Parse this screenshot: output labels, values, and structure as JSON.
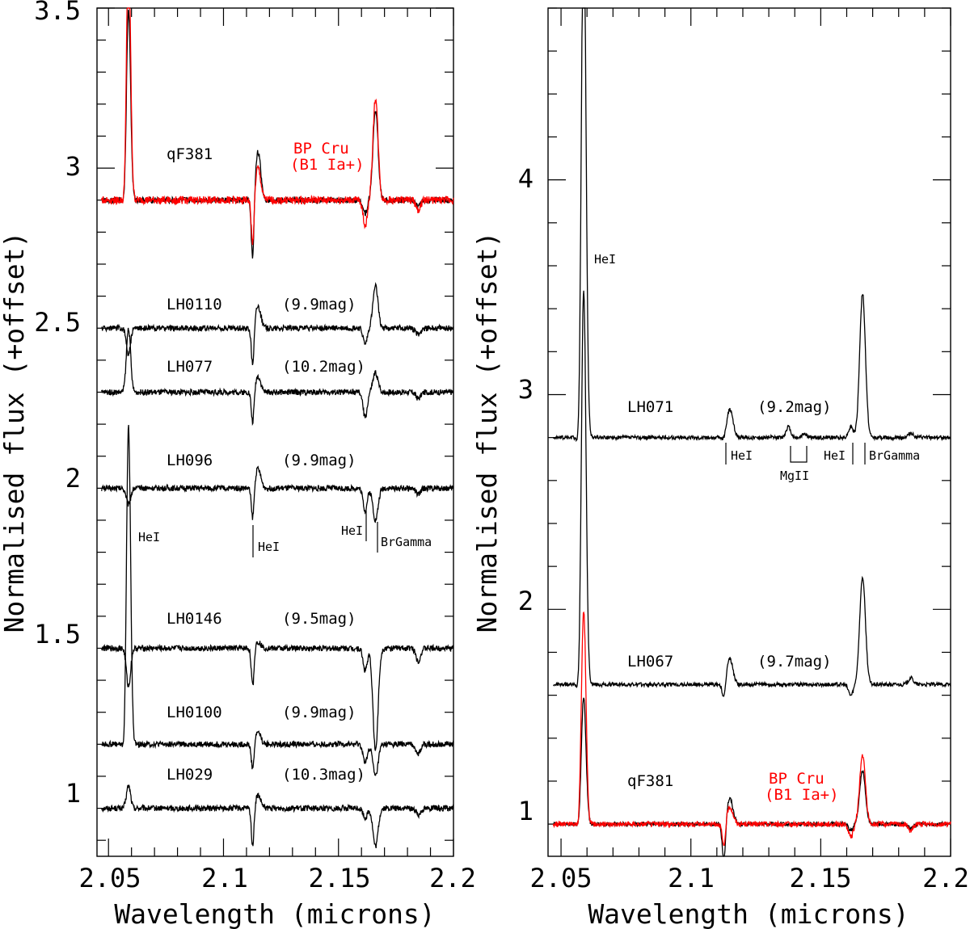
{
  "chart_data": [
    {
      "type": "line",
      "panel": "left",
      "xlabel": "Wavelength (microns)",
      "ylabel": "Normalised flux (+offset)",
      "xlim": [
        2.045,
        2.2
      ],
      "ylim": [
        0.85,
        3.5
      ],
      "xticks": [
        2.05,
        2.1,
        2.15,
        2.2
      ],
      "xtick_labels": [
        "2.05",
        "2.1",
        "2.15",
        "2.2"
      ],
      "yticks": [
        1,
        1.5,
        2,
        2.5,
        3,
        3.5
      ],
      "ytick_labels": [
        "1",
        "1.5",
        "2",
        "2.5",
        "3",
        "3.5"
      ],
      "series": [
        {
          "name": "LH029",
          "mag": "(10.3mag)",
          "baseline": 1.0,
          "color": "#000000",
          "lines": {
            "HeI_206": 0.07,
            "HeI_211a": -0.12,
            "HeI_211e": 0.04,
            "HeI_216": -0.03,
            "BrG": -0.12,
            "HeI_2185": -0.02
          }
        },
        {
          "name": "LH0100",
          "mag": "(9.9mag)",
          "baseline": 1.2,
          "color": "#000000",
          "lines": {
            "HeI_206": 1.0,
            "HeI_211a": -0.08,
            "HeI_211e": 0.04,
            "HeI_216": -0.06,
            "BrG": -0.1,
            "HeI_2185": -0.03
          }
        },
        {
          "name": "LH0146",
          "mag": "(9.5mag)",
          "baseline": 1.5,
          "color": "#000000",
          "lines": {
            "HeI_206": -0.12,
            "HeI_211a": -0.12,
            "HeI_211e": 0.02,
            "HeI_216": -0.07,
            "BrG": -0.32,
            "HeI_2185": -0.04
          }
        },
        {
          "name": "LH096",
          "mag": "(9.9mag)",
          "baseline": 2.0,
          "color": "#000000",
          "lines": {
            "HeI_206": -0.05,
            "HeI_211a": -0.1,
            "HeI_211e": 0.06,
            "HeI_216": -0.07,
            "BrG": -0.1,
            "HeI_2185": -0.02
          }
        },
        {
          "name": "LH077",
          "mag": "(10.2mag)",
          "baseline": 2.3,
          "color": "#000000",
          "lines": {
            "HeI_206": 0.2,
            "HeI_211a": -0.1,
            "HeI_211e": 0.05,
            "HeI_216": -0.08,
            "BrG": 0.06,
            "HeI_2185": -0.02
          }
        },
        {
          "name": "LH0110",
          "mag": "(9.9mag)",
          "baseline": 2.5,
          "color": "#000000",
          "lines": {
            "HeI_206": -0.08,
            "HeI_211a": -0.12,
            "HeI_211e": 0.07,
            "HeI_216": -0.05,
            "BrG": 0.13,
            "HeI_2185": -0.02
          }
        },
        {
          "name": "qF381",
          "baseline": 2.9,
          "color": "#000000",
          "lines": {
            "HeI_206": 0.6,
            "HeI_211a": -0.2,
            "HeI_211e": 0.15,
            "HeI_216": -0.04,
            "BrG": 0.28,
            "HeI_2185": -0.02
          }
        },
        {
          "name": "BP Cru",
          "spectral_type": "(B1 Ia+)",
          "baseline": 2.9,
          "color": "#ff0000",
          "lines": {
            "HeI_206": 0.8,
            "HeI_211a": -0.15,
            "HeI_211e": 0.1,
            "HeI_216": -0.08,
            "BrG": 0.32,
            "HeI_2185": -0.03
          }
        }
      ],
      "line_ids": [
        {
          "label": "HeI",
          "x": 2.0587
        },
        {
          "label": "HeI",
          "x": 2.1127
        },
        {
          "label": "HeI",
          "x": 2.1616
        },
        {
          "label": "BrGamma",
          "x": 2.1661
        }
      ]
    },
    {
      "type": "line",
      "panel": "right",
      "xlabel": "Wavelength (microns)",
      "ylabel": "Normalised flux (+offset)",
      "xlim": [
        2.045,
        2.2
      ],
      "ylim": [
        0.85,
        4.8
      ],
      "xticks": [
        2.05,
        2.1,
        2.15,
        2.2
      ],
      "xtick_labels": [
        "2.05",
        "2.1",
        "2.15",
        "2.2"
      ],
      "yticks": [
        1,
        2,
        3,
        4
      ],
      "ytick_labels": [
        "1",
        "2",
        "3",
        "4"
      ],
      "series": [
        {
          "name": "qF381",
          "baseline": 1.0,
          "color": "#000000",
          "lines": {
            "HeI_206": 0.6,
            "HeI_211a": -0.2,
            "HeI_211e": 0.12,
            "HeI_216": -0.03,
            "BrG": 0.25,
            "HeI_2185": -0.02
          }
        },
        {
          "name": "BP Cru",
          "spectral_type": "(B1 Ia+)",
          "baseline": 1.0,
          "color": "#ff0000",
          "lines": {
            "HeI_206": 1.0,
            "HeI_211a": -0.12,
            "HeI_211e": 0.08,
            "HeI_216": -0.06,
            "BrG": 0.32,
            "HeI_2185": -0.03
          }
        },
        {
          "name": "LH067",
          "mag": "(9.7mag)",
          "baseline": 1.65,
          "color": "#000000",
          "lines": {
            "HeI_206": 1.85,
            "HeI_211a": -0.08,
            "HeI_211e": 0.12,
            "HeI_216": -0.05,
            "BrG": 0.5,
            "HeI_2185": 0.03
          }
        },
        {
          "name": "LH071",
          "mag": "(9.2mag)",
          "baseline": 2.8,
          "color": "#000000",
          "lines": {
            "HeI_206": 2.5,
            "HeI_211a": -0.02,
            "HeI_211e": 0.13,
            "HeI_216": 0.05,
            "BrG": 0.67,
            "MgII_2138": 0.05,
            "MgII_2144": 0.02,
            "HeI_2185": 0.02
          }
        }
      ],
      "line_ids": [
        {
          "label": "HeI",
          "x": 2.0587
        },
        {
          "label": "HeI",
          "x": 2.1127
        },
        {
          "label": "MgII",
          "x": 2.1405
        },
        {
          "label": "HeI",
          "x": 2.1616
        },
        {
          "label": "BrGamma",
          "x": 2.1661
        }
      ]
    }
  ]
}
